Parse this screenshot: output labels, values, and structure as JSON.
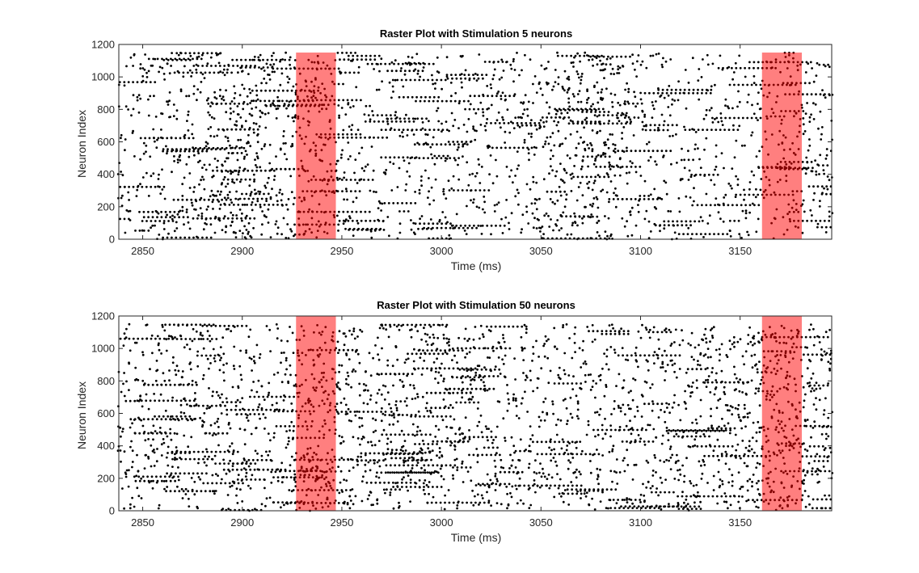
{
  "chart_data": [
    {
      "type": "scatter",
      "title": "Raster Plot with Stimulation 5 neurons",
      "xlabel": "Time (ms)",
      "ylabel": "Neuron Index",
      "xlim": [
        2838,
        3196
      ],
      "ylim": [
        0,
        1200
      ],
      "xticks": [
        2850,
        2900,
        2950,
        3000,
        3050,
        3100,
        3150
      ],
      "yticks": [
        0,
        200,
        400,
        600,
        800,
        1000,
        1200
      ],
      "grid": false,
      "marker_color": "#000000",
      "stimulation_color": "#ff0000",
      "stimulation_alpha": 0.5,
      "stimulation_windows": [
        {
          "start": 2927,
          "end": 2947,
          "y_top": 1150
        },
        {
          "start": 3161,
          "end": 3181,
          "y_top": 1150
        }
      ],
      "activity_profile": [
        {
          "x": 2845,
          "density": 0.8
        },
        {
          "x": 2860,
          "density": 1.0
        },
        {
          "x": 2875,
          "density": 1.1
        },
        {
          "x": 2890,
          "density": 1.8
        },
        {
          "x": 2905,
          "density": 2.0
        },
        {
          "x": 2920,
          "density": 1.2
        },
        {
          "x": 2937,
          "density": 1.6
        },
        {
          "x": 2960,
          "density": 0.5
        },
        {
          "x": 2980,
          "density": 0.6
        },
        {
          "x": 3000,
          "density": 0.7
        },
        {
          "x": 3020,
          "density": 0.8
        },
        {
          "x": 3040,
          "density": 1.0
        },
        {
          "x": 3060,
          "density": 1.6
        },
        {
          "x": 3080,
          "density": 1.9
        },
        {
          "x": 3100,
          "density": 1.0
        },
        {
          "x": 3120,
          "density": 0.6
        },
        {
          "x": 3140,
          "density": 0.6
        },
        {
          "x": 3171,
          "density": 1.0
        },
        {
          "x": 3190,
          "density": 0.9
        }
      ]
    },
    {
      "type": "scatter",
      "title": "Raster Plot with Stimulation 50 neurons",
      "xlabel": "Time (ms)",
      "ylabel": "Neuron Index",
      "xlim": [
        2838,
        3196
      ],
      "ylim": [
        0,
        1200
      ],
      "xticks": [
        2850,
        2900,
        2950,
        3000,
        3050,
        3100,
        3150
      ],
      "yticks": [
        0,
        200,
        400,
        600,
        800,
        1000,
        1200
      ],
      "grid": false,
      "marker_color": "#000000",
      "stimulation_color": "#ff0000",
      "stimulation_alpha": 0.5,
      "stimulation_windows": [
        {
          "start": 2927,
          "end": 2947,
          "y_top": 1200
        },
        {
          "start": 3161,
          "end": 3181,
          "y_top": 1200
        }
      ],
      "activity_profile": [
        {
          "x": 2845,
          "density": 1.1
        },
        {
          "x": 2860,
          "density": 1.2
        },
        {
          "x": 2875,
          "density": 1.1
        },
        {
          "x": 2890,
          "density": 1.0
        },
        {
          "x": 2905,
          "density": 0.9
        },
        {
          "x": 2920,
          "density": 0.9
        },
        {
          "x": 2937,
          "density": 2.2
        },
        {
          "x": 2960,
          "density": 1.3
        },
        {
          "x": 2980,
          "density": 1.3
        },
        {
          "x": 3000,
          "density": 1.3
        },
        {
          "x": 3020,
          "density": 1.2
        },
        {
          "x": 3040,
          "density": 1.1
        },
        {
          "x": 3060,
          "density": 1.1
        },
        {
          "x": 3080,
          "density": 1.1
        },
        {
          "x": 3100,
          "density": 1.1
        },
        {
          "x": 3120,
          "density": 1.2
        },
        {
          "x": 3140,
          "density": 1.3
        },
        {
          "x": 3171,
          "density": 2.2
        },
        {
          "x": 3190,
          "density": 1.0
        }
      ]
    }
  ]
}
